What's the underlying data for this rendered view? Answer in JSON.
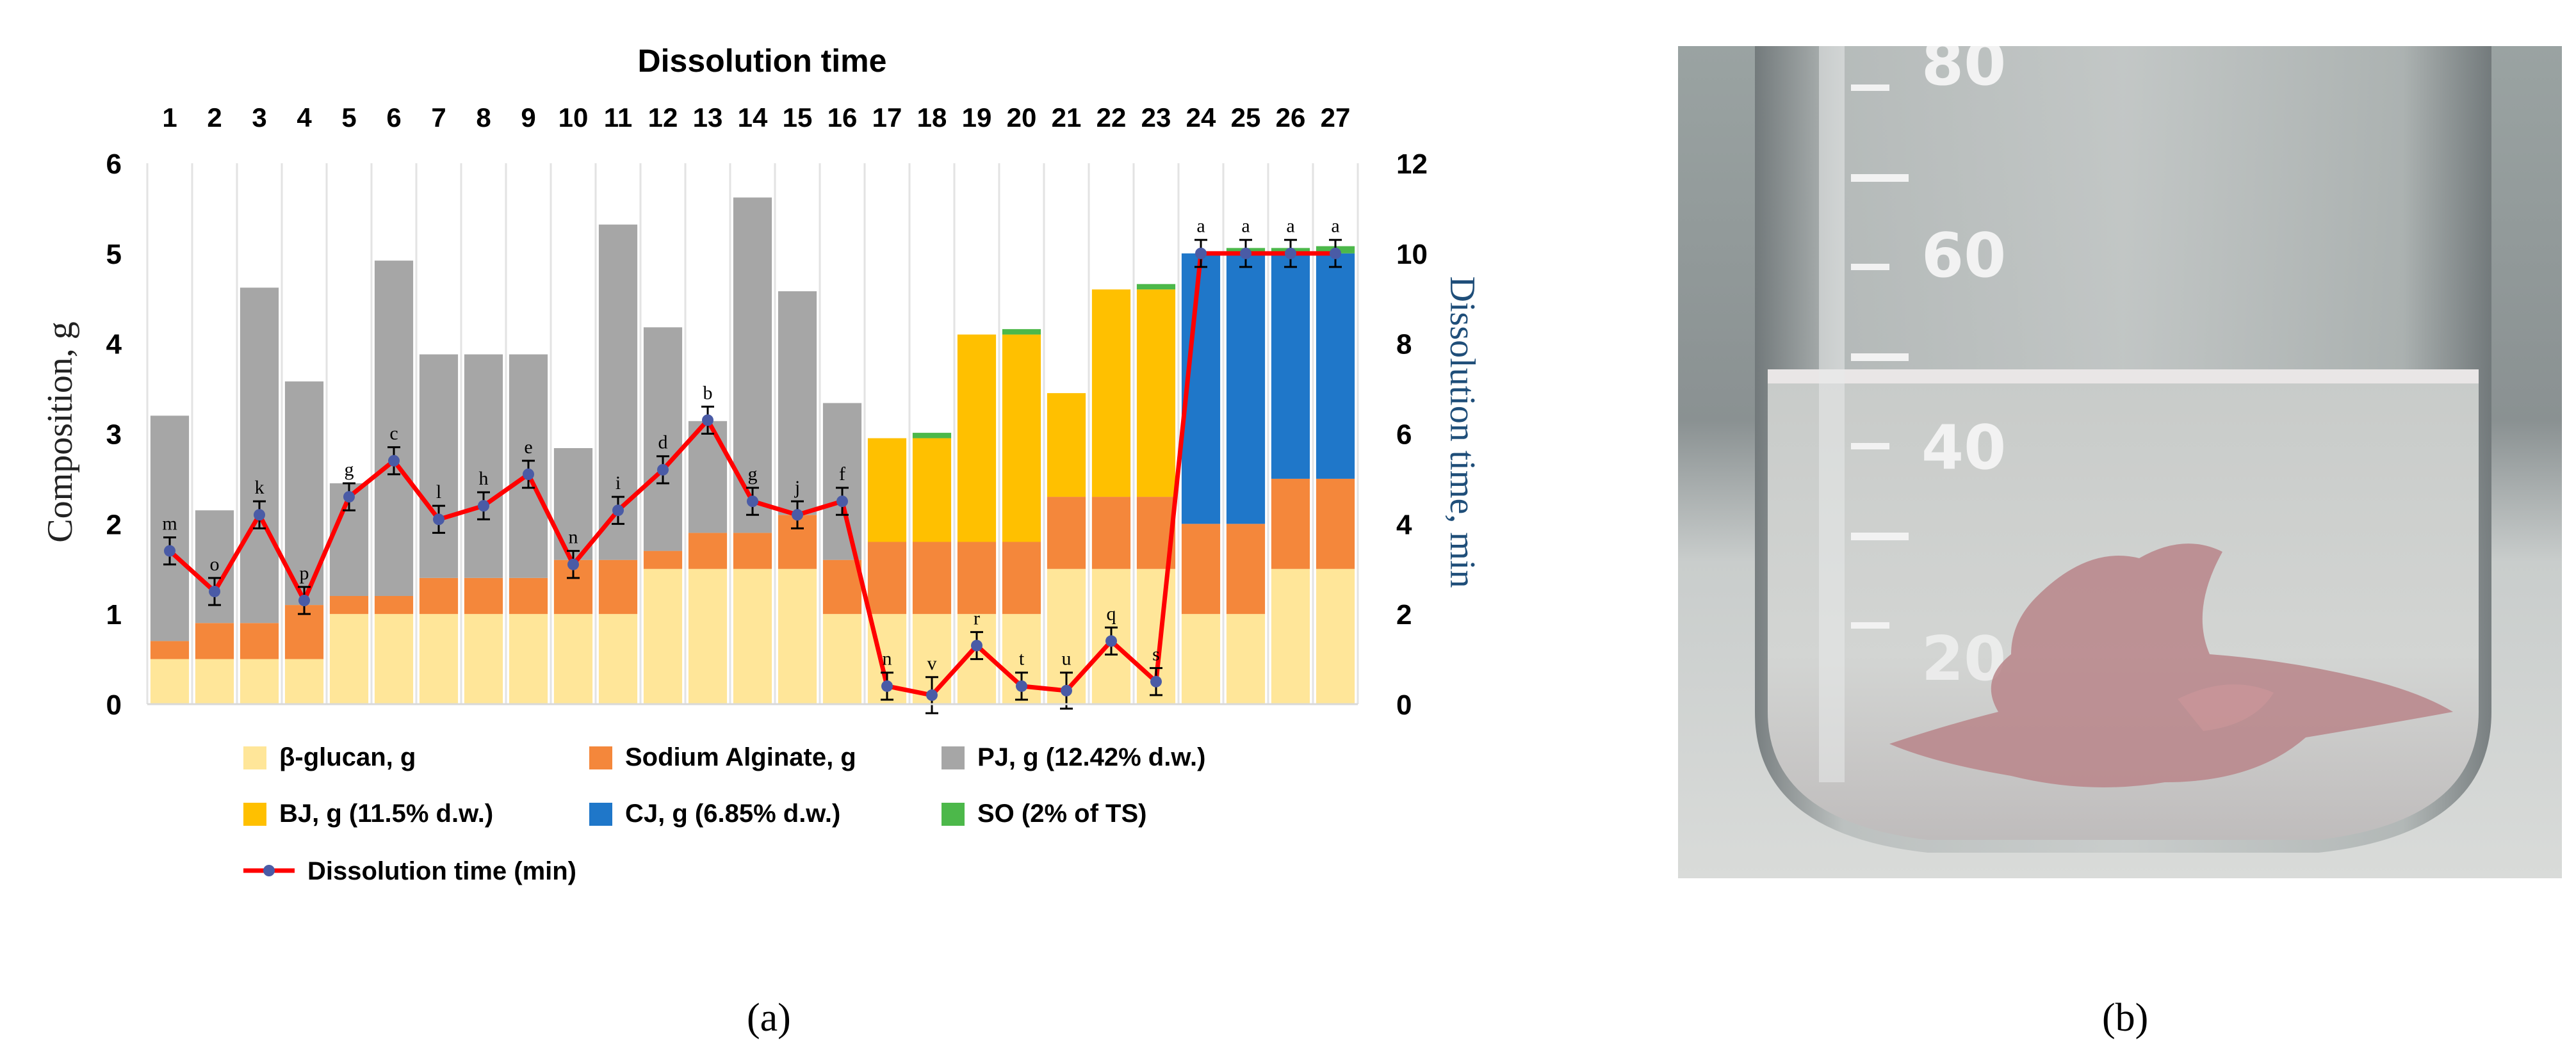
{
  "figure": {
    "panel_a_label": "(a)",
    "panel_b_label": "(b)",
    "photo": {
      "description": "Glass beaker with clear liquid and a dissolving pink film piece at the bottom",
      "scale_marks": [
        "80",
        "60",
        "40",
        "20"
      ]
    }
  },
  "chart_data": {
    "type": "bar",
    "stacked": true,
    "title": "Dissolution time",
    "ylabel": "Composition, g",
    "y2label": "Dissolution time, min",
    "ylim": [
      0,
      6
    ],
    "y2lim": [
      0,
      12
    ],
    "yticks": [
      0,
      1,
      2,
      3,
      4,
      5,
      6
    ],
    "y2ticks": [
      0,
      2,
      4,
      6,
      8,
      10,
      12
    ],
    "categories": [
      "1",
      "2",
      "3",
      "4",
      "5",
      "6",
      "7",
      "8",
      "9",
      "10",
      "11",
      "12",
      "13",
      "14",
      "15",
      "16",
      "17",
      "18",
      "19",
      "20",
      "21",
      "22",
      "23",
      "24",
      "25",
      "26",
      "27"
    ],
    "grid": true,
    "legend_position": "bottom",
    "series": [
      {
        "name": "β-glucan, g",
        "color": "#FFE699",
        "values": [
          0.5,
          0.5,
          0.5,
          0.5,
          1,
          1,
          1,
          1,
          1,
          1,
          1,
          1.5,
          1.5,
          1.5,
          1.5,
          1,
          1,
          1,
          1,
          1,
          1.5,
          1.5,
          1.5,
          1,
          1,
          1.5,
          1.5
        ]
      },
      {
        "name": "Sodium Alginate, g",
        "color": "#F4873B",
        "values": [
          0.2,
          0.4,
          0.4,
          0.6,
          0.2,
          0.2,
          0.4,
          0.4,
          0.4,
          0.6,
          0.6,
          0.2,
          0.4,
          0.4,
          0.6,
          0.6,
          0.8,
          0.8,
          0.8,
          0.8,
          0.8,
          0.8,
          0.8,
          1,
          1,
          1,
          1
        ]
      },
      {
        "name": "PJ, g (12.42% d.w.)",
        "color": "#A6A6A6",
        "values": [
          2.5,
          1.25,
          3.72,
          2.48,
          1.25,
          3.72,
          2.48,
          2.48,
          2.48,
          1.24,
          3.72,
          2.48,
          1.24,
          3.72,
          2.48,
          1.74,
          0,
          0,
          0,
          0,
          0,
          0,
          0,
          0,
          0,
          0,
          0
        ]
      },
      {
        "name": "BJ, g (11.5% d.w.)",
        "color": "#FFC000",
        "values": [
          0,
          0,
          0,
          0,
          0,
          0,
          0,
          0,
          0,
          0,
          0,
          0,
          0,
          0,
          0,
          0,
          1.15,
          1.15,
          2.3,
          2.3,
          1.15,
          2.3,
          2.3,
          0,
          0,
          0,
          0
        ]
      },
      {
        "name": "CJ,  g (6.85% d.w.)",
        "color": "#1F77C9",
        "values": [
          0,
          0,
          0,
          0,
          0,
          0,
          0,
          0,
          0,
          0,
          0,
          0,
          0,
          0,
          0,
          0,
          0,
          0,
          0,
          0,
          0,
          0,
          0,
          3,
          3,
          2.5,
          2.5
        ]
      },
      {
        "name": "SO (2% of TS)",
        "color": "#4CB84A",
        "values": [
          0,
          0,
          0,
          0,
          0,
          0,
          0,
          0,
          0,
          0,
          0,
          0,
          0,
          0,
          0,
          0,
          0,
          0.06,
          0,
          0.06,
          0,
          0,
          0.06,
          0,
          0.06,
          0.06,
          0.08
        ]
      }
    ],
    "line": {
      "name": "Dissolution time (min)",
      "color": "#FF0000",
      "marker_color": "#4A5BA6",
      "values": [
        3.4,
        2.5,
        4.2,
        2.3,
        4.6,
        5.4,
        4.1,
        4.4,
        5.1,
        3.1,
        4.3,
        5.2,
        6.3,
        4.5,
        4.2,
        4.5,
        0.4,
        0.2,
        1.3,
        0.4,
        0.3,
        1.4,
        0.5,
        10,
        10,
        10,
        10
      ],
      "errors": [
        0.3,
        0.3,
        0.3,
        0.3,
        0.3,
        0.3,
        0.3,
        0.3,
        0.3,
        0.3,
        0.3,
        0.3,
        0.3,
        0.3,
        0.3,
        0.3,
        0.3,
        0.4,
        0.3,
        0.3,
        0.4,
        0.3,
        0.3,
        0.3,
        0.3,
        0.3,
        0.3
      ],
      "letters": [
        "m",
        "o",
        "k",
        "p",
        "g",
        "c",
        "l",
        "h",
        "e",
        "n",
        "i",
        "d",
        "b",
        "g",
        "j",
        "f",
        "n",
        "v",
        "r",
        "t",
        "u",
        "q",
        "s",
        "a",
        "a",
        "a",
        "a"
      ]
    }
  }
}
